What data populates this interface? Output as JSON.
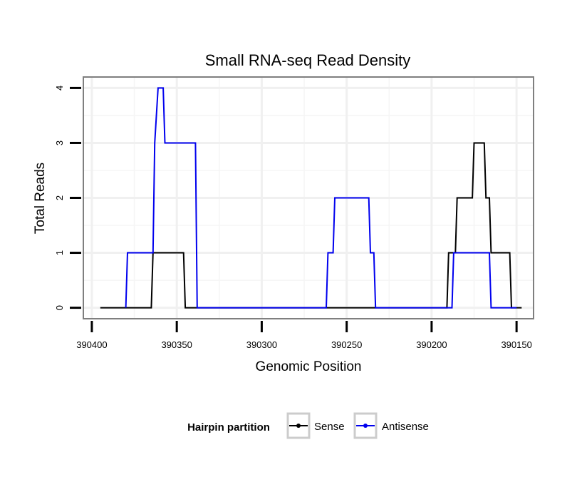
{
  "chart_data": {
    "type": "line",
    "title": "Small RNA-seq Read Density",
    "xlabel": "Genomic Position",
    "ylabel": "Total Reads",
    "xlim": [
      390405,
      390140
    ],
    "ylim": [
      -0.2,
      4.2
    ],
    "x_reversed": true,
    "grid": true,
    "x_ticks": [
      390400,
      390350,
      390300,
      390250,
      390200,
      390150
    ],
    "x_tick_labels": [
      "390400",
      "390350",
      "390300",
      "390250",
      "390200",
      "390150"
    ],
    "y_ticks": [
      0,
      1,
      2,
      3,
      4
    ],
    "y_tick_labels": [
      "0",
      "1",
      "2",
      "3",
      "4"
    ],
    "legend": {
      "title": "Hairpin partition",
      "position": "bottom"
    },
    "series": [
      {
        "name": "Sense",
        "color": "#000000",
        "x": [
          390395,
          390380,
          390365,
          390364,
          390346,
          390345,
          390330,
          390300,
          390260,
          390250,
          390230,
          390191,
          390190,
          390188,
          390187,
          390186,
          390185,
          390176,
          390175,
          390170,
          390169,
          390168,
          390167,
          390166,
          390165,
          390161,
          390160,
          390154,
          390153,
          390152,
          390147
        ],
        "y": [
          0,
          0,
          0,
          1,
          1,
          0,
          0,
          0,
          0,
          0,
          0,
          0,
          1,
          1,
          1,
          1,
          2,
          2,
          3,
          3,
          3,
          2,
          2,
          2,
          1,
          1,
          1,
          1,
          0,
          0,
          0
        ]
      },
      {
        "name": "Antisense",
        "color": "#0000ee",
        "x": [
          390380,
          390379,
          390364,
          390363,
          390361,
          390360,
          390358,
          390357,
          390356,
          390340,
          390339,
          390338,
          390300,
          390262,
          390261,
          390258,
          390257,
          390252,
          390245,
          390237,
          390236,
          390234,
          390233,
          390232,
          390231,
          390190,
          390188,
          390187,
          390170,
          390166,
          390165,
          390155,
          390150
        ],
        "y": [
          0,
          1,
          1,
          3,
          4,
          4,
          4,
          3,
          3,
          3,
          3,
          0,
          0,
          0,
          1,
          1,
          2,
          2,
          2,
          2,
          1,
          1,
          0,
          0,
          0,
          0,
          0,
          1,
          1,
          1,
          0,
          0,
          0
        ]
      }
    ]
  }
}
